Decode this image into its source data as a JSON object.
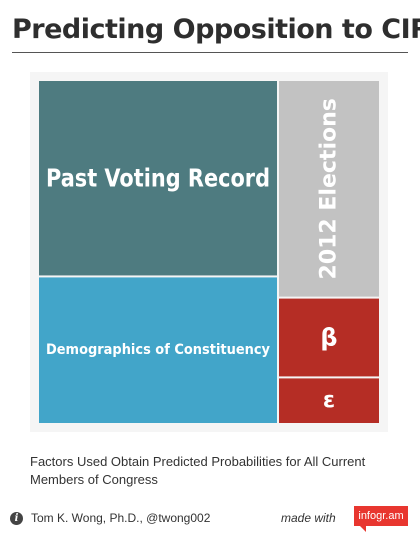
{
  "title": "Predicting Opposition to CIR",
  "caption": "Factors Used Obtain Predicted Probabilities for All Current Members of Congress",
  "footer": {
    "author": "Tom K. Wong, Ph.D., @twong002",
    "made_with": "made with",
    "brand": "infogr.am"
  },
  "colors": {
    "past_voting": "#4e7b80",
    "demographics": "#42a5c9",
    "elections": "#c2c2c2",
    "beta": "#b52d25",
    "epsilon": "#b52d25",
    "panel": "#f5f5f5",
    "brand": "#e8362f"
  },
  "chart_data": {
    "type": "treemap",
    "items": [
      {
        "label": "Past Voting Record",
        "value": 40
      },
      {
        "label": "Demographics of Constituency",
        "value": 30
      },
      {
        "label": "2012 Elections",
        "value": 19
      },
      {
        "label": "β",
        "value": 7
      },
      {
        "label": "ε",
        "value": 4
      }
    ]
  }
}
